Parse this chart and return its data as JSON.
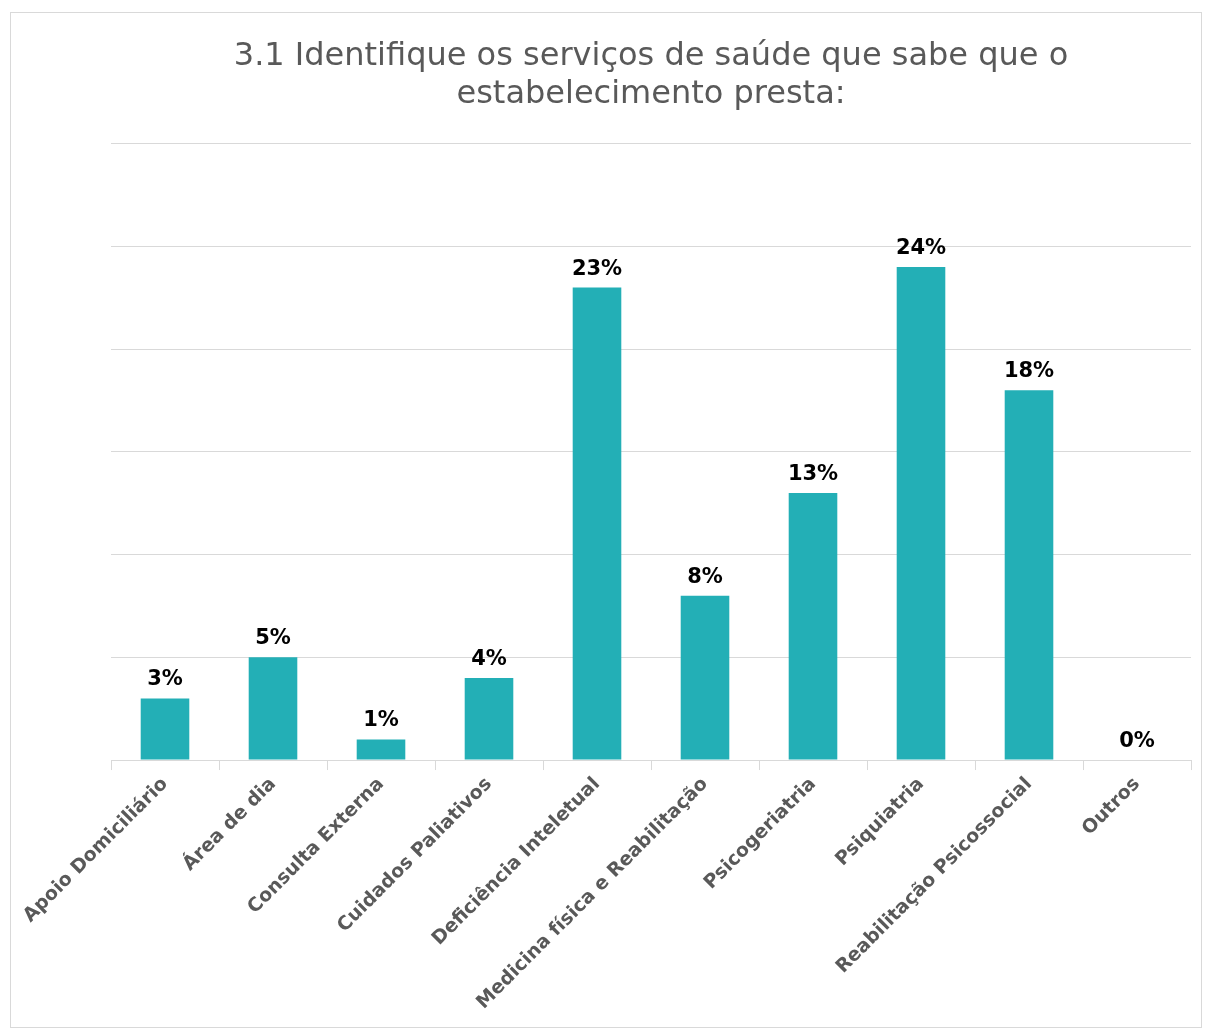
{
  "chart_data": {
    "type": "bar",
    "title": "3.1 Identifique os serviços de saúde que sabe que o estabelecimento presta:",
    "categories": [
      "Apoio Domiciliário",
      "Área de dia",
      "Consulta Externa",
      "Cuidados Paliativos",
      "Deficiência Inteletual",
      "Medicina física e Reabilitação",
      "Psicogeriatria",
      "Psiquiatria",
      "Reabilitação Psicossocial",
      "Outros"
    ],
    "values": [
      3,
      5,
      1,
      4,
      23,
      8,
      13,
      24,
      18,
      0
    ],
    "value_labels": [
      "3%",
      "5%",
      "1%",
      "4%",
      "23%",
      "8%",
      "13%",
      "24%",
      "18%",
      "0%"
    ],
    "color": "#23afb6",
    "ylim": [
      0,
      30
    ],
    "yticks": [
      0,
      {
        "value": 5,
        "label": null
      },
      {
        "value": 10,
        "label": null
      },
      {
        "value": 15,
        "label": null
      },
      {
        "value": 20,
        "label": null
      },
      {
        "value": 25,
        "label": null
      },
      {
        "value": 30,
        "label": null
      }
    ],
    "tick_labels": "x",
    "grid": "y",
    "legend": false
  }
}
